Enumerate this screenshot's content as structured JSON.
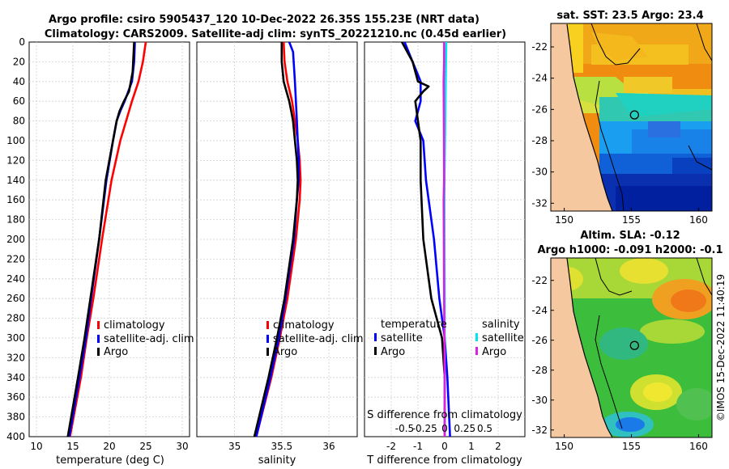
{
  "header": {
    "title_line1": "Argo profile: csiro 5905437_120 10-Dec-2022 26.35S 155.23E (NRT data)",
    "title_line2": "Climatology: CARS2009. Satellite-adj clim: synTS_20221210.nc (0.45d earlier)"
  },
  "sst_map": {
    "title": "sat. SST: 23.5 Argo: 23.4"
  },
  "sla_map": {
    "title1": "Altim. SLA: -0.12",
    "title2": "Argo h1000: -0.091 h2000: -0.1"
  },
  "credit": "©IMOS 15-Dec-2022 11:40:19",
  "colors": {
    "climatology": "#ff0000",
    "satellite": "#0000ff",
    "argo": "#000000",
    "s_satellite": "#00e5ee",
    "s_argo": "#e020e0"
  },
  "chart_data": [
    {
      "type": "line",
      "name": "temperature",
      "xlabel": "temperature (deg C)",
      "ylabel": "",
      "xlim": [
        9,
        31
      ],
      "ylim": [
        400,
        0
      ],
      "x_ticks": [
        "10",
        "15",
        "20",
        "25",
        "30"
      ],
      "x_tick_values": [
        10,
        15,
        20,
        25,
        30
      ],
      "y_ticks": [
        "0",
        "20",
        "40",
        "60",
        "80",
        "100",
        "120",
        "140",
        "160",
        "180",
        "200",
        "220",
        "240",
        "260",
        "280",
        "300",
        "320",
        "340",
        "360",
        "380",
        "400"
      ],
      "legend": [
        "climatology",
        "satellite-adj. clim",
        "Argo"
      ],
      "series": [
        {
          "name": "climatology",
          "color": "#ff0000",
          "depth": [
            0,
            20,
            40,
            60,
            80,
            100,
            140,
            200,
            260,
            300,
            340,
            400
          ],
          "values": [
            25.0,
            24.6,
            24.0,
            23.1,
            22.3,
            21.5,
            20.3,
            19.0,
            17.8,
            16.9,
            16.1,
            14.6
          ]
        },
        {
          "name": "satellite-adj. clim",
          "color": "#0000ff",
          "depth": [
            0,
            20,
            40,
            60,
            70,
            80,
            100,
            140,
            200,
            260,
            300,
            340,
            400
          ],
          "values": [
            23.5,
            23.4,
            23.1,
            22.1,
            21.5,
            21.0,
            20.5,
            19.6,
            18.6,
            17.5,
            16.8,
            15.9,
            14.5
          ]
        },
        {
          "name": "Argo",
          "color": "#000000",
          "depth": [
            0,
            30,
            50,
            60,
            70,
            80,
            100,
            140,
            200,
            260,
            300,
            340,
            400
          ],
          "values": [
            23.4,
            23.2,
            22.7,
            22.0,
            21.4,
            21.0,
            20.5,
            19.5,
            18.6,
            17.4,
            16.6,
            15.7,
            14.3
          ]
        }
      ]
    },
    {
      "type": "line",
      "name": "salinity",
      "xlabel": "salinity",
      "xlim": [
        34.6,
        36.3
      ],
      "ylim": [
        400,
        0
      ],
      "x_ticks": [
        "35",
        "35.5",
        "36"
      ],
      "x_tick_values": [
        35,
        35.5,
        36
      ],
      "legend": [
        "climatology",
        "satellite-adj. clim",
        "Argo"
      ],
      "series": [
        {
          "name": "climatology",
          "color": "#ff0000",
          "depth": [
            0,
            20,
            40,
            60,
            80,
            100,
            120,
            140,
            160,
            200,
            260,
            300,
            340,
            400
          ],
          "values": [
            35.52,
            35.53,
            35.56,
            35.61,
            35.64,
            35.67,
            35.69,
            35.7,
            35.69,
            35.65,
            35.56,
            35.48,
            35.39,
            35.23
          ]
        },
        {
          "name": "satellite-adj. clim",
          "color": "#0000ff",
          "depth": [
            0,
            10,
            40,
            60,
            80,
            100,
            120,
            140,
            160,
            200,
            260,
            300,
            340,
            400
          ],
          "values": [
            35.58,
            35.62,
            35.64,
            35.65,
            35.66,
            35.67,
            35.68,
            35.68,
            35.66,
            35.63,
            35.54,
            35.47,
            35.38,
            35.23
          ]
        },
        {
          "name": "Argo",
          "color": "#000000",
          "depth": [
            0,
            20,
            40,
            50,
            60,
            70,
            80,
            100,
            120,
            140,
            160,
            200,
            260,
            300,
            340,
            400
          ],
          "values": [
            35.5,
            35.5,
            35.52,
            35.55,
            35.58,
            35.6,
            35.62,
            35.64,
            35.66,
            35.67,
            35.66,
            35.62,
            35.53,
            35.45,
            35.36,
            35.21
          ]
        }
      ]
    },
    {
      "type": "line",
      "name": "difference",
      "xlabel": "T difference from climatology",
      "xlabel_top": "S difference from climatology",
      "xlim": [
        -3,
        3
      ],
      "ylim": [
        400,
        0
      ],
      "x_ticks": [
        "-2",
        "-1",
        "0",
        "1",
        "2"
      ],
      "x_tick_values": [
        -2,
        -1,
        0,
        1,
        2
      ],
      "s_ticks": [
        "-0.5",
        "-0.25",
        "0",
        "0.25",
        "0.5"
      ],
      "s_tick_values": [
        -0.5,
        -0.25,
        0,
        0.25,
        0.5
      ],
      "legend_left_title": "temperature",
      "legend_right_title": "salinity",
      "legend_left": [
        "satellite",
        "Argo"
      ],
      "legend_right": [
        "satellite",
        "Argo"
      ],
      "series": [
        {
          "name": "T satellite",
          "color": "#0000ff",
          "depth": [
            0,
            20,
            40,
            60,
            80,
            100,
            140,
            200,
            260,
            300,
            340,
            400
          ],
          "values": [
            -1.5,
            -1.2,
            -0.9,
            -0.9,
            -1.1,
            -0.8,
            -0.7,
            -0.4,
            -0.2,
            0.0,
            0.1,
            0.2
          ]
        },
        {
          "name": "T Argo",
          "color": "#000000",
          "depth": [
            0,
            20,
            40,
            45,
            50,
            60,
            80,
            100,
            140,
            200,
            260,
            300,
            340,
            400
          ],
          "values": [
            -1.6,
            -1.2,
            -1.0,
            -0.6,
            -0.8,
            -1.1,
            -1.0,
            -0.9,
            -0.9,
            -0.8,
            -0.5,
            -0.1,
            0.0,
            0.0
          ]
        },
        {
          "name": "S satellite",
          "color": "#00e5ee",
          "depth": [
            0,
            20,
            40,
            80,
            140,
            200,
            260,
            300,
            340,
            400
          ],
          "values": [
            0.06,
            0.05,
            0.04,
            0.02,
            -0.01,
            -0.01,
            0.0,
            0.0,
            0.0,
            0.0
          ]
        },
        {
          "name": "S Argo",
          "color": "#e020e0",
          "depth": [
            0,
            20,
            40,
            80,
            140,
            160,
            200,
            260,
            300,
            340,
            400
          ],
          "values": [
            -0.02,
            -0.02,
            -0.04,
            -0.03,
            -0.02,
            -0.04,
            -0.03,
            -0.02,
            -0.01,
            0.0,
            0.0
          ]
        }
      ]
    },
    {
      "type": "heatmap",
      "name": "sst-map",
      "xlim": [
        149,
        161
      ],
      "ylim": [
        -32.5,
        -20.5
      ],
      "x_ticks": [
        "150",
        "155",
        "160"
      ],
      "x_tick_values": [
        150,
        155,
        160
      ],
      "y_ticks": [
        "-22",
        "-24",
        "-26",
        "-28",
        "-30",
        "-32"
      ],
      "y_tick_values": [
        -22,
        -24,
        -26,
        -28,
        -30,
        -32
      ],
      "argo_lon": 155.23,
      "argo_lat": -26.35
    },
    {
      "type": "heatmap",
      "name": "sla-map",
      "xlim": [
        149,
        161
      ],
      "ylim": [
        -32.5,
        -20.5
      ],
      "x_ticks": [
        "150",
        "155",
        "160"
      ],
      "x_tick_values": [
        150,
        155,
        160
      ],
      "y_ticks": [
        "-22",
        "-24",
        "-26",
        "-28",
        "-30",
        "-32"
      ],
      "y_tick_values": [
        -22,
        -24,
        -26,
        -28,
        -30,
        -32
      ],
      "argo_lon": 155.23,
      "argo_lat": -26.35
    }
  ]
}
